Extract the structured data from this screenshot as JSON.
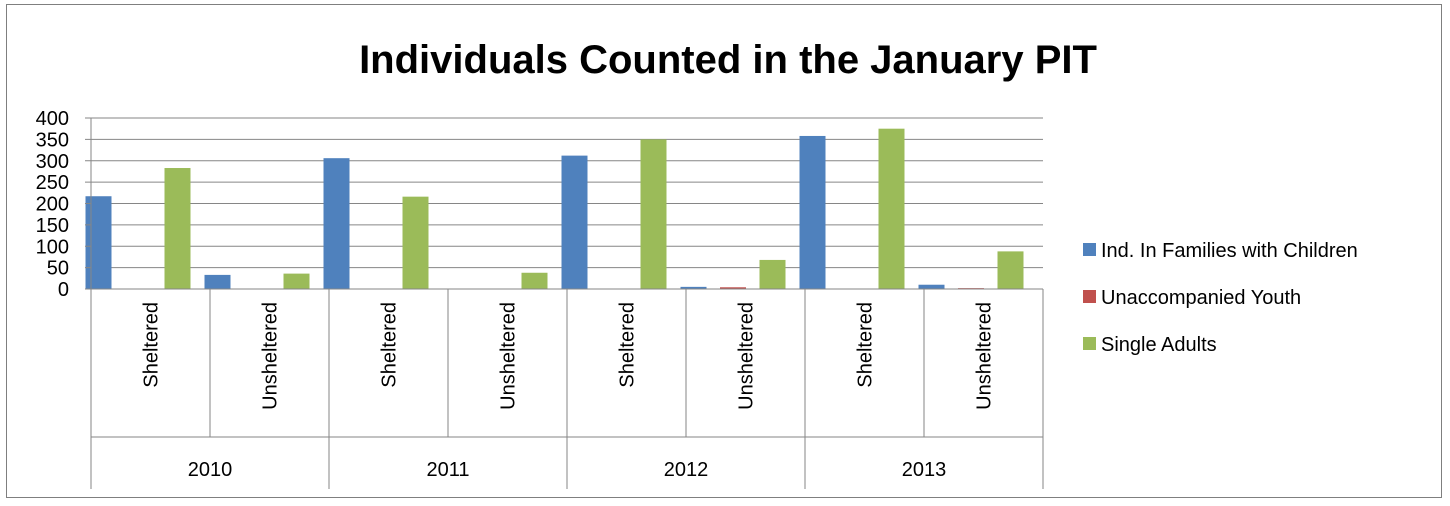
{
  "chart_data": {
    "type": "bar",
    "title": "Individuals Counted in the January PIT",
    "xlabel": "",
    "ylabel": "",
    "ylim": [
      0,
      400
    ],
    "yticks": [
      "0",
      "50",
      "100",
      "150",
      "200",
      "250",
      "300",
      "350",
      "400"
    ],
    "grid": true,
    "legend_position": "right",
    "groups": [
      "2010",
      "2011",
      "2012",
      "2013"
    ],
    "categories": [
      "Sheltered",
      "Unsheltered",
      "Sheltered",
      "Unsheltered",
      "Sheltered",
      "Unsheltered",
      "Sheltered",
      "Unsheltered"
    ],
    "series": [
      {
        "name": "Ind. In Families with Children",
        "color": "#4F81BD",
        "values": [
          217,
          33,
          306,
          0,
          312,
          5,
          358,
          10
        ]
      },
      {
        "name": "Unaccompanied Youth",
        "color": "#C0504D",
        "values": [
          0,
          0,
          0,
          0,
          0,
          4,
          0,
          2
        ]
      },
      {
        "name": "Single Adults",
        "color": "#9BBB59",
        "values": [
          283,
          36,
          216,
          38,
          350,
          68,
          375,
          88
        ]
      }
    ]
  }
}
